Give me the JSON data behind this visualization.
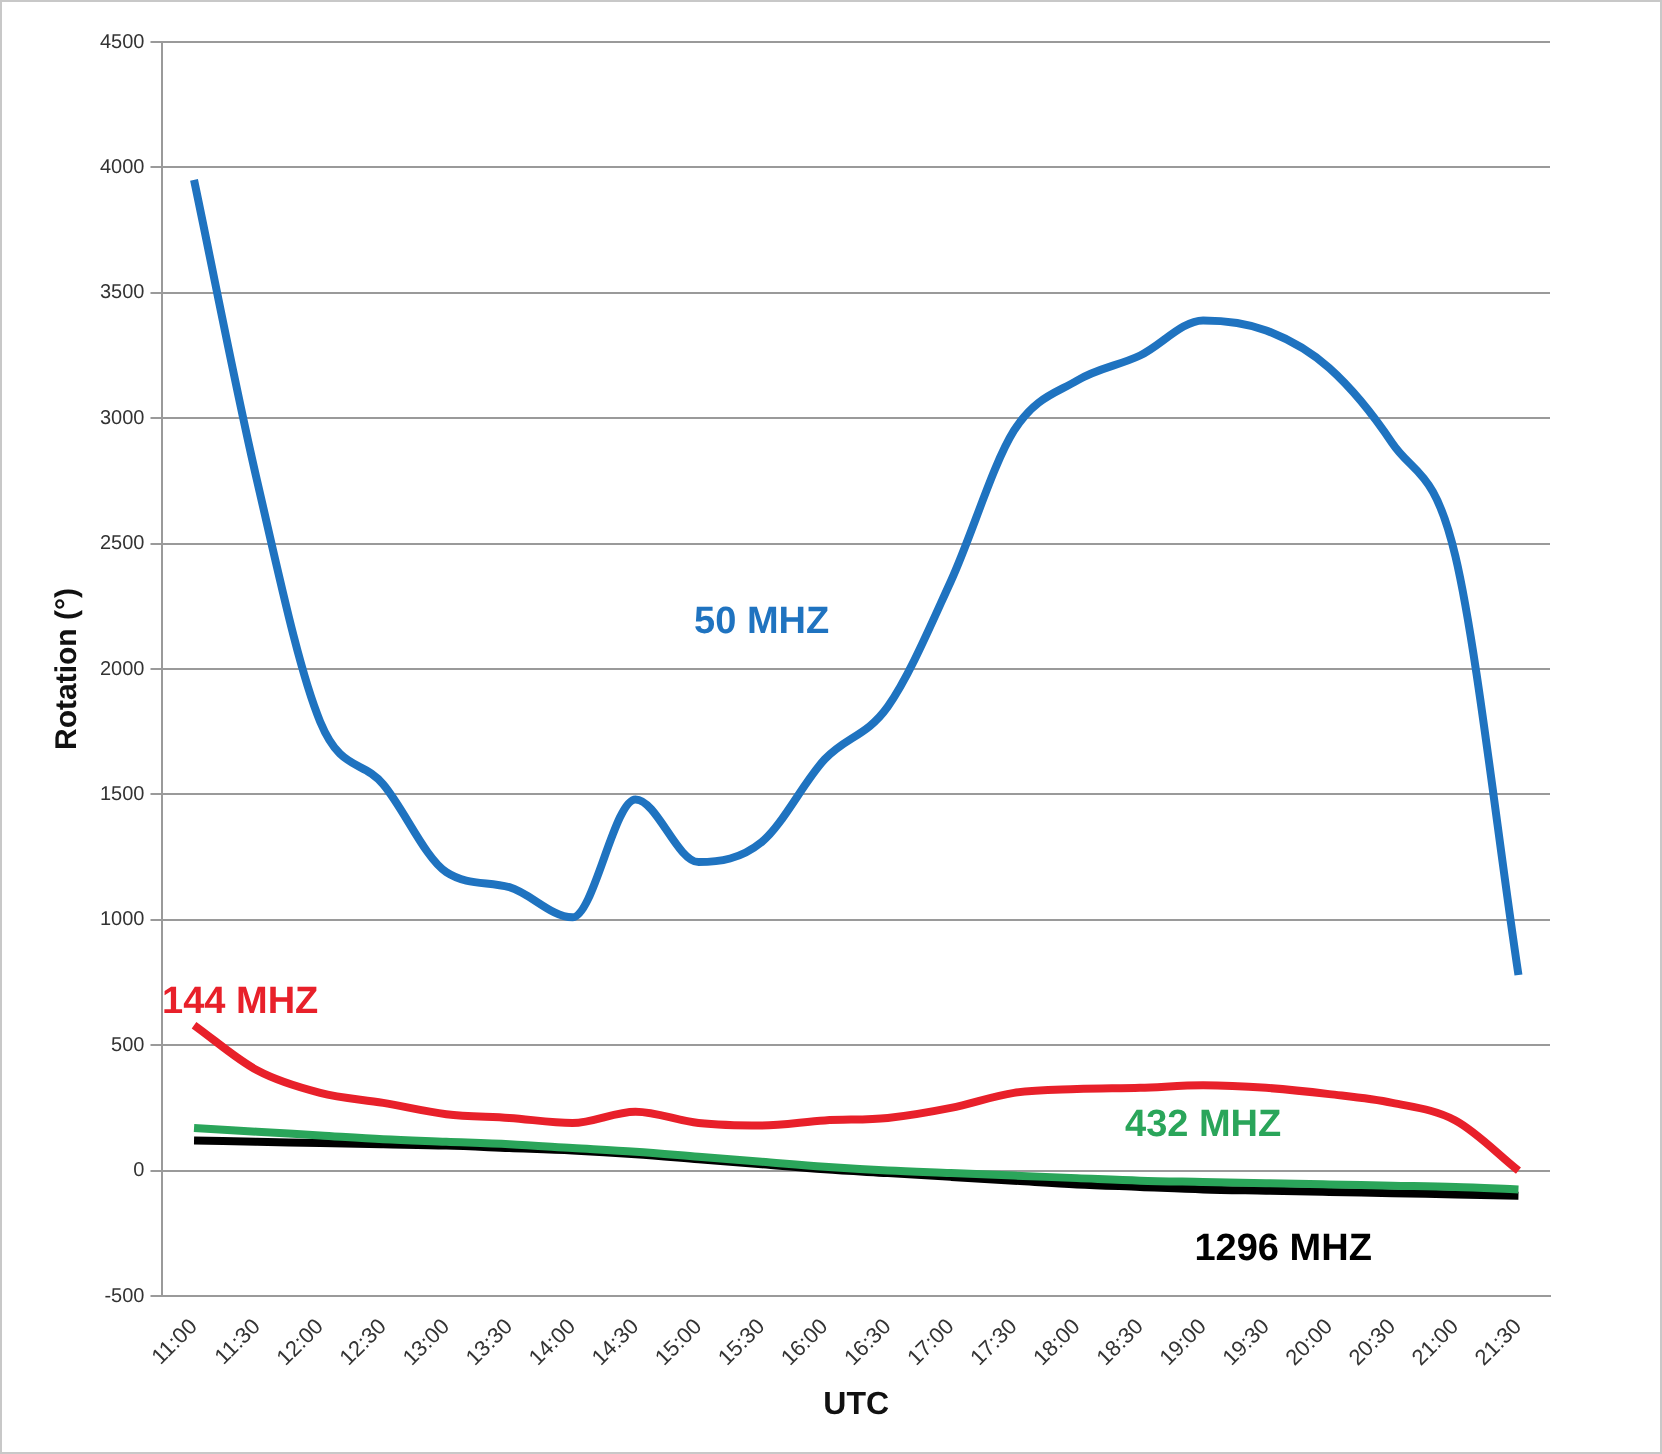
{
  "chart_data": {
    "type": "line",
    "xlabel": "UTC",
    "ylabel": "Rotation (°)",
    "categories": [
      "11:00",
      "11:30",
      "12:00",
      "12:30",
      "13:00",
      "13:30",
      "14:00",
      "14:30",
      "15:00",
      "15:30",
      "16:00",
      "16:30",
      "17:00",
      "17:30",
      "18:00",
      "18:30",
      "19:00",
      "19:30",
      "20:00",
      "20:30",
      "21:00",
      "21:30"
    ],
    "series": [
      {
        "name": "50 MHZ",
        "color": "#1f73c0",
        "values": [
          3950,
          2750,
          1790,
          1540,
          1190,
          1130,
          1010,
          1480,
          1230,
          1310,
          1640,
          1850,
          2350,
          2950,
          3150,
          3250,
          3390,
          3350,
          3200,
          2900,
          2450,
          780
        ]
      },
      {
        "name": "144 MHZ",
        "color": "#e8202a",
        "values": [
          580,
          400,
          310,
          270,
          225,
          210,
          190,
          235,
          190,
          180,
          200,
          210,
          250,
          310,
          325,
          330,
          340,
          330,
          305,
          270,
          200,
          0
        ]
      },
      {
        "name": "432 MHZ",
        "color": "#2aa55a",
        "values": [
          170,
          155,
          140,
          125,
          115,
          105,
          90,
          75,
          55,
          35,
          15,
          0,
          -10,
          -20,
          -30,
          -40,
          -45,
          -50,
          -55,
          -60,
          -65,
          -75
        ]
      },
      {
        "name": "1296 MHZ",
        "color": "#000000",
        "values": [
          120,
          115,
          110,
          105,
          100,
          90,
          80,
          65,
          45,
          25,
          5,
          -10,
          -25,
          -40,
          -55,
          -65,
          -75,
          -80,
          -85,
          -90,
          -95,
          -100
        ]
      }
    ],
    "ylim": [
      -500,
      4500
    ],
    "yticks": [
      -500,
      0,
      500,
      1000,
      1500,
      2000,
      2500,
      3000,
      3500,
      4000,
      4500
    ],
    "grid": "y",
    "legend": false,
    "marker": "none",
    "line_style": "solid"
  }
}
